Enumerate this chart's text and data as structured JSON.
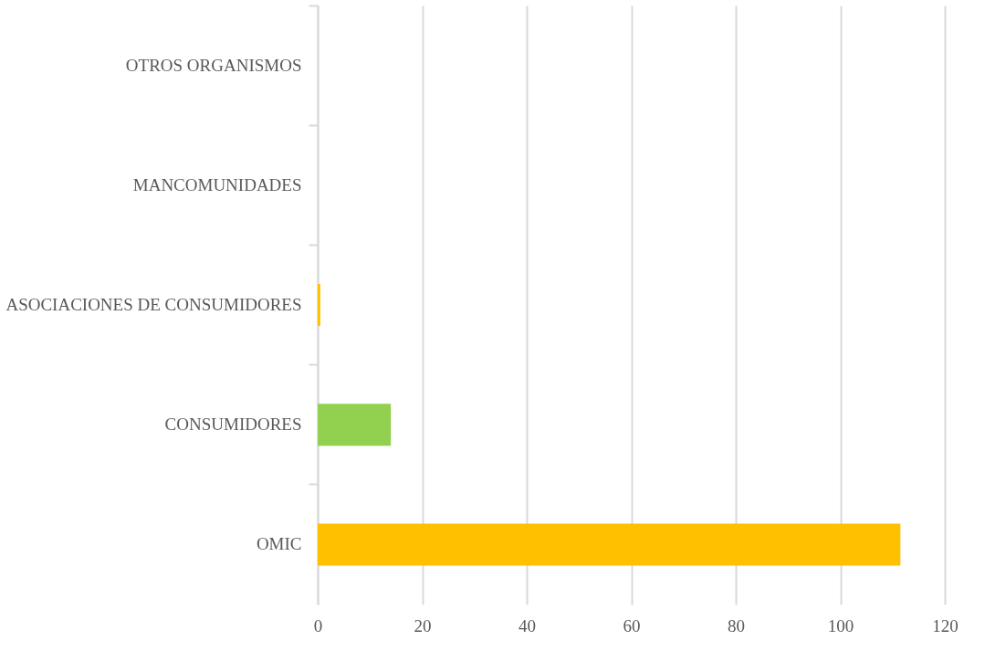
{
  "chart_data": {
    "type": "bar",
    "orientation": "horizontal",
    "categories": [
      "OTROS ORGANISMOS",
      "MANCOMUNIDADES",
      "ASOCIACIONES DE CONSUMIDORES",
      "CONSUMIDORES",
      "OMIC"
    ],
    "values": [
      0,
      0,
      0.5,
      14,
      111.5
    ],
    "colors": [
      "#ffc000",
      "#ffc000",
      "#ffc000",
      "#92d050",
      "#ffc000"
    ],
    "xlim": [
      0,
      120
    ],
    "xticks": [
      0,
      20,
      40,
      60,
      80,
      100,
      120
    ],
    "grid": "x"
  }
}
